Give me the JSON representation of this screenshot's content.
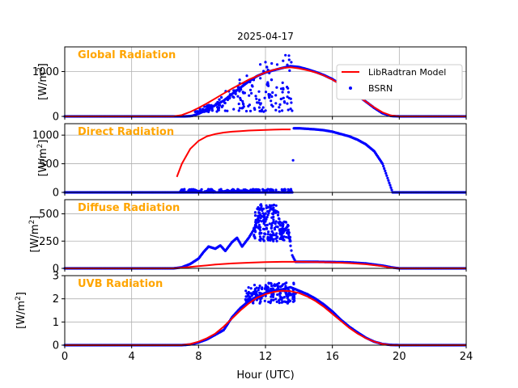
{
  "chart_data": {
    "type": "line",
    "title": "2025-04-17",
    "xlabel": "Hour (UTC)",
    "xlim": [
      0,
      24
    ],
    "xticks": [
      0,
      4,
      8,
      12,
      16,
      20,
      24
    ],
    "grid": true,
    "legend": {
      "placement": "upper-right of top panel",
      "entries": [
        {
          "name": "LibRadtran Model",
          "style": "line",
          "color": "#ff0000"
        },
        {
          "name": "BSRN",
          "style": "points",
          "color": "#0000ff"
        }
      ]
    },
    "panels": [
      {
        "label": "Global Radiation",
        "ylabel_unit": "[W/m",
        "ylabel_sup": "2",
        "ylabel_close": "]",
        "ylim": [
          0,
          1550
        ],
        "yticks": [
          0,
          1000
        ],
        "model": [
          [
            0,
            0
          ],
          [
            6.5,
            0
          ],
          [
            7,
            30
          ],
          [
            7.5,
            100
          ],
          [
            8,
            190
          ],
          [
            8.5,
            290
          ],
          [
            9,
            400
          ],
          [
            9.5,
            510
          ],
          [
            10,
            620
          ],
          [
            10.5,
            720
          ],
          [
            11,
            820
          ],
          [
            11.5,
            900
          ],
          [
            12,
            980
          ],
          [
            12.5,
            1040
          ],
          [
            13,
            1080
          ],
          [
            13.5,
            1095
          ],
          [
            14,
            1070
          ],
          [
            14.5,
            1030
          ],
          [
            15,
            980
          ],
          [
            15.5,
            910
          ],
          [
            16,
            820
          ],
          [
            16.5,
            710
          ],
          [
            17,
            590
          ],
          [
            17.5,
            460
          ],
          [
            18,
            330
          ],
          [
            18.5,
            200
          ],
          [
            19,
            90
          ],
          [
            19.5,
            20
          ],
          [
            20,
            0
          ],
          [
            24,
            0
          ]
        ],
        "obs_envelope": [
          [
            0,
            0
          ],
          [
            7.2,
            0
          ],
          [
            7.6,
            10
          ],
          [
            8,
            60
          ],
          [
            8.5,
            150
          ],
          [
            9,
            250
          ],
          [
            9.5,
            350
          ],
          [
            10,
            500
          ],
          [
            10.5,
            640
          ],
          [
            11,
            780
          ],
          [
            11.5,
            900
          ],
          [
            12,
            980
          ],
          [
            12.5,
            1030
          ],
          [
            13,
            1080
          ],
          [
            13.5,
            1120
          ],
          [
            14,
            1100
          ],
          [
            14.5,
            1050
          ],
          [
            15,
            990
          ],
          [
            15.5,
            920
          ],
          [
            16,
            830
          ],
          [
            16.5,
            720
          ],
          [
            17,
            600
          ],
          [
            17.5,
            470
          ],
          [
            18,
            330
          ],
          [
            18.5,
            190
          ],
          [
            19,
            70
          ],
          [
            19.5,
            10
          ],
          [
            20,
            0
          ],
          [
            24,
            0
          ]
        ],
        "obs_scatter": {
          "x_start": 7.8,
          "x_end": 13.6,
          "low": 100,
          "high": 1450
        }
      },
      {
        "label": "Direct Radiation",
        "ylabel_unit": "[W/m",
        "ylabel_sup": "2",
        "ylabel_close": "]",
        "ylim": [
          0,
          1200
        ],
        "yticks": [
          0,
          500,
          1000
        ],
        "model": [
          [
            6.7,
            270
          ],
          [
            7,
            500
          ],
          [
            7.5,
            760
          ],
          [
            8,
            900
          ],
          [
            8.5,
            980
          ],
          [
            9,
            1020
          ],
          [
            9.5,
            1045
          ],
          [
            10,
            1060
          ],
          [
            10.5,
            1070
          ],
          [
            11,
            1080
          ],
          [
            11.5,
            1085
          ],
          [
            12,
            1090
          ],
          [
            12.5,
            1095
          ],
          [
            13,
            1100
          ],
          [
            13.5,
            1100
          ]
        ],
        "obs_envelope": [
          [
            0,
            0
          ],
          [
            13.6,
            0
          ],
          [
            13.7,
            1120
          ],
          [
            14,
            1120
          ],
          [
            14.5,
            1110
          ],
          [
            15,
            1100
          ],
          [
            15.5,
            1085
          ],
          [
            16,
            1060
          ],
          [
            16.5,
            1020
          ],
          [
            17,
            980
          ],
          [
            17.5,
            920
          ],
          [
            18,
            840
          ],
          [
            18.5,
            720
          ],
          [
            19,
            500
          ],
          [
            19.3,
            250
          ],
          [
            19.6,
            0
          ],
          [
            24,
            0
          ]
        ],
        "obs_scatter": {
          "x_start": 6.9,
          "x_end": 13.6,
          "low": 0,
          "high": 1120
        }
      },
      {
        "label": "Diffuse Radiation",
        "ylabel_unit": "[W/m",
        "ylabel_sup": "2",
        "ylabel_close": "]",
        "ylim": [
          0,
          630
        ],
        "yticks": [
          0,
          250,
          500
        ],
        "model": [
          [
            0,
            0
          ],
          [
            6.5,
            0
          ],
          [
            7,
            5
          ],
          [
            8,
            20
          ],
          [
            9,
            35
          ],
          [
            10,
            45
          ],
          [
            11,
            52
          ],
          [
            12,
            57
          ],
          [
            13,
            60
          ],
          [
            14,
            60
          ],
          [
            15,
            58
          ],
          [
            16,
            55
          ],
          [
            17,
            48
          ],
          [
            18,
            38
          ],
          [
            19,
            20
          ],
          [
            19.5,
            5
          ],
          [
            20,
            0
          ],
          [
            24,
            0
          ]
        ],
        "obs_envelope": [
          [
            0,
            0
          ],
          [
            6.5,
            0
          ],
          [
            7,
            10
          ],
          [
            7.5,
            40
          ],
          [
            8,
            90
          ],
          [
            8.3,
            150
          ],
          [
            8.6,
            200
          ],
          [
            9,
            180
          ],
          [
            9.3,
            210
          ],
          [
            9.6,
            160
          ],
          [
            10,
            240
          ],
          [
            10.3,
            280
          ],
          [
            10.6,
            200
          ],
          [
            11,
            280
          ],
          [
            11.4,
            380
          ],
          [
            11.7,
            580
          ],
          [
            12,
            430
          ],
          [
            12.3,
            550
          ],
          [
            12.7,
            520
          ],
          [
            13,
            330
          ],
          [
            13.3,
            380
          ],
          [
            13.6,
            120
          ],
          [
            13.8,
            60
          ],
          [
            14,
            60
          ],
          [
            15,
            60
          ],
          [
            16,
            58
          ],
          [
            17,
            55
          ],
          [
            18,
            45
          ],
          [
            19,
            25
          ],
          [
            19.5,
            10
          ],
          [
            20,
            0
          ],
          [
            24,
            0
          ]
        ],
        "obs_scatter": {
          "x_start": 11.3,
          "x_end": 13.5,
          "low": 250,
          "high": 590
        }
      },
      {
        "label": "UVB Radiation",
        "ylabel_unit": "[W/m",
        "ylabel_sup": "2",
        "ylabel_close": "]",
        "ylim": [
          0,
          3
        ],
        "yticks": [
          0,
          1,
          2,
          3
        ],
        "model": [
          [
            0,
            0
          ],
          [
            7,
            0
          ],
          [
            7.5,
            0.05
          ],
          [
            8,
            0.15
          ],
          [
            8.5,
            0.3
          ],
          [
            9,
            0.5
          ],
          [
            9.5,
            0.8
          ],
          [
            10,
            1.15
          ],
          [
            10.5,
            1.5
          ],
          [
            11,
            1.8
          ],
          [
            11.5,
            2.05
          ],
          [
            12,
            2.2
          ],
          [
            12.5,
            2.3
          ],
          [
            13,
            2.35
          ],
          [
            13.5,
            2.33
          ],
          [
            14,
            2.25
          ],
          [
            14.5,
            2.1
          ],
          [
            15,
            1.9
          ],
          [
            15.5,
            1.65
          ],
          [
            16,
            1.35
          ],
          [
            16.5,
            1.05
          ],
          [
            17,
            0.75
          ],
          [
            17.5,
            0.5
          ],
          [
            18,
            0.3
          ],
          [
            18.5,
            0.15
          ],
          [
            19,
            0.05
          ],
          [
            19.5,
            0
          ],
          [
            24,
            0
          ]
        ],
        "obs_envelope": [
          [
            0,
            0
          ],
          [
            7,
            0
          ],
          [
            7.5,
            0.03
          ],
          [
            8,
            0.12
          ],
          [
            8.5,
            0.25
          ],
          [
            9,
            0.45
          ],
          [
            9.5,
            0.65
          ],
          [
            10,
            1.2
          ],
          [
            10.5,
            1.6
          ],
          [
            11,
            1.9
          ],
          [
            11.5,
            2.1
          ],
          [
            12,
            2.25
          ],
          [
            12.5,
            2.35
          ],
          [
            13,
            2.4
          ],
          [
            13.5,
            2.5
          ],
          [
            14,
            2.35
          ],
          [
            14.5,
            2.2
          ],
          [
            15,
            2.0
          ],
          [
            15.5,
            1.75
          ],
          [
            16,
            1.45
          ],
          [
            16.5,
            1.1
          ],
          [
            17,
            0.8
          ],
          [
            17.5,
            0.55
          ],
          [
            18,
            0.32
          ],
          [
            18.5,
            0.15
          ],
          [
            19,
            0.05
          ],
          [
            19.5,
            0.01
          ],
          [
            20,
            0
          ],
          [
            24,
            0
          ]
        ],
        "obs_scatter": {
          "x_start": 10.8,
          "x_end": 13.8,
          "low": 1.8,
          "high": 2.7
        }
      }
    ]
  }
}
